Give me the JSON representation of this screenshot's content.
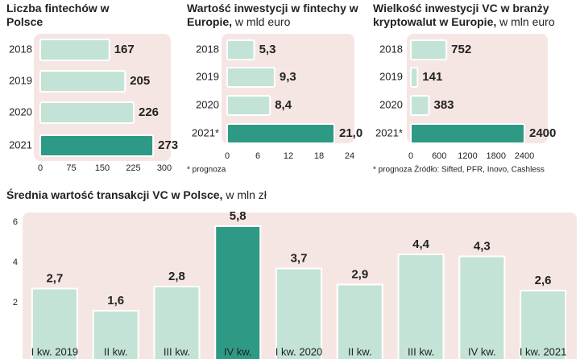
{
  "chart_data": [
    {
      "type": "hbar",
      "title": "Liczba fintechów w Polsce",
      "categories": [
        "2018",
        "2019",
        "2020",
        "2021"
      ],
      "values": [
        167,
        205,
        226,
        273
      ],
      "colors": [
        "#c3e3d6",
        "#c3e3d6",
        "#c3e3d6",
        "#2e9a86"
      ],
      "xlim": [
        0,
        300
      ],
      "xticks": [
        0,
        75,
        150,
        225,
        300
      ]
    },
    {
      "type": "hbar",
      "title": "Wartość inwestycji w fintechy w Europie,",
      "subtitle": "w mld euro",
      "categories": [
        "2018",
        "2019",
        "2020",
        "2021*"
      ],
      "values": [
        5.3,
        9.3,
        8.4,
        21.0
      ],
      "value_labels": [
        "5,3",
        "9,3",
        "8,4",
        "21,0"
      ],
      "colors": [
        "#c3e3d6",
        "#c3e3d6",
        "#c3e3d6",
        "#2e9a86"
      ],
      "xlim": [
        0,
        24
      ],
      "xticks": [
        0,
        6,
        12,
        18,
        24
      ],
      "note": "* prognoza"
    },
    {
      "type": "hbar",
      "title": "Wielkość inwestycji VC w branży kryptowalut w Europie,",
      "subtitle": "w mln euro",
      "categories": [
        "2018",
        "2019",
        "2020",
        "2021*"
      ],
      "values": [
        752,
        141,
        383,
        2400
      ],
      "colors": [
        "#c3e3d6",
        "#c3e3d6",
        "#c3e3d6",
        "#2e9a86"
      ],
      "xlim": [
        0,
        2400
      ],
      "xticks": [
        0,
        600,
        1200,
        1800,
        2400
      ],
      "note": "* prognoza Źródło: Sifted, PFR, Inovo, Cashless"
    },
    {
      "type": "bar",
      "title": "Średnia wartość transakcji VC w Polsce,",
      "subtitle": "w mln zł",
      "categories": [
        "I kw. 2019",
        "II kw.",
        "III kw.",
        "IV kw.",
        "I kw. 2020",
        "II kw.",
        "III kw.",
        "IV kw.",
        "I kw. 2021"
      ],
      "values": [
        2.7,
        1.6,
        2.8,
        5.8,
        3.7,
        2.9,
        4.4,
        4.3,
        2.6
      ],
      "value_labels": [
        "2,7",
        "1,6",
        "2,8",
        "5,8",
        "3,7",
        "2,9",
        "4,4",
        "4,3",
        "2,6"
      ],
      "colors": [
        "#c3e3d6",
        "#c3e3d6",
        "#c3e3d6",
        "#2e9a86",
        "#c3e3d6",
        "#c3e3d6",
        "#c3e3d6",
        "#c3e3d6",
        "#c3e3d6"
      ],
      "ylim": [
        0,
        6
      ],
      "yticks": [
        2,
        4,
        6
      ]
    }
  ]
}
